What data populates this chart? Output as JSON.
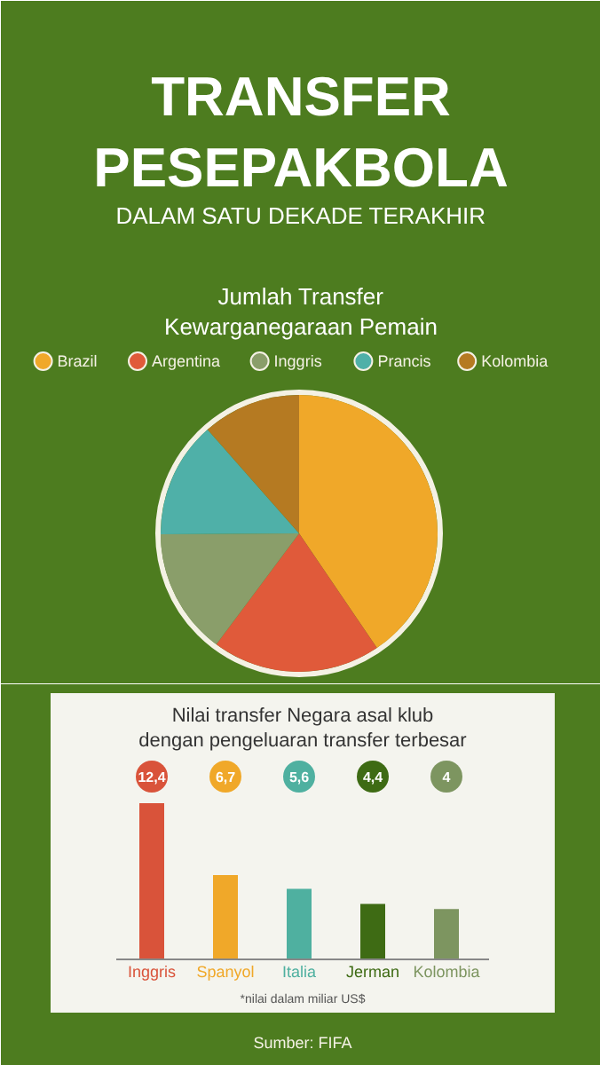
{
  "chart_data": [
    {
      "type": "pie",
      "title": "Jumlah Transfer\nKewarganegaraan Pemain",
      "annotations": [
        "TRANSFER\nPESEPAKBOLA",
        "DALAM SATU DEKADE TERAKHIR"
      ],
      "categories": [
        "Brazil",
        "Argentina",
        "Inggris",
        "Prancis",
        "Kolombia"
      ],
      "values": [
        40.5,
        19.7,
        14.7,
        13.6,
        11.5
      ],
      "colors": [
        "#f0a829",
        "#e05a3a",
        "#8a9e6a",
        "#4fb0a8",
        "#b57a22"
      ],
      "legend": "top"
    },
    {
      "type": "bar",
      "title": "Nilai transfer Negara asal klub\ndengan pengeluaran transfer terbesar",
      "categories": [
        "Inggris",
        "Spanyol",
        "Italia",
        "Jerman",
        "Kolombia"
      ],
      "values": [
        12.4,
        6.7,
        5.6,
        4.4,
        4
      ],
      "value_labels": [
        "12,4",
        "6,7",
        "5,6",
        "4,4",
        "4"
      ],
      "colors": [
        "#d9533a",
        "#f0a829",
        "#4fb0a0",
        "#3e6b14",
        "#7d9560"
      ],
      "annotations": [
        "*nilai dalam miliar US$",
        "Sumber: FIFA"
      ]
    }
  ]
}
